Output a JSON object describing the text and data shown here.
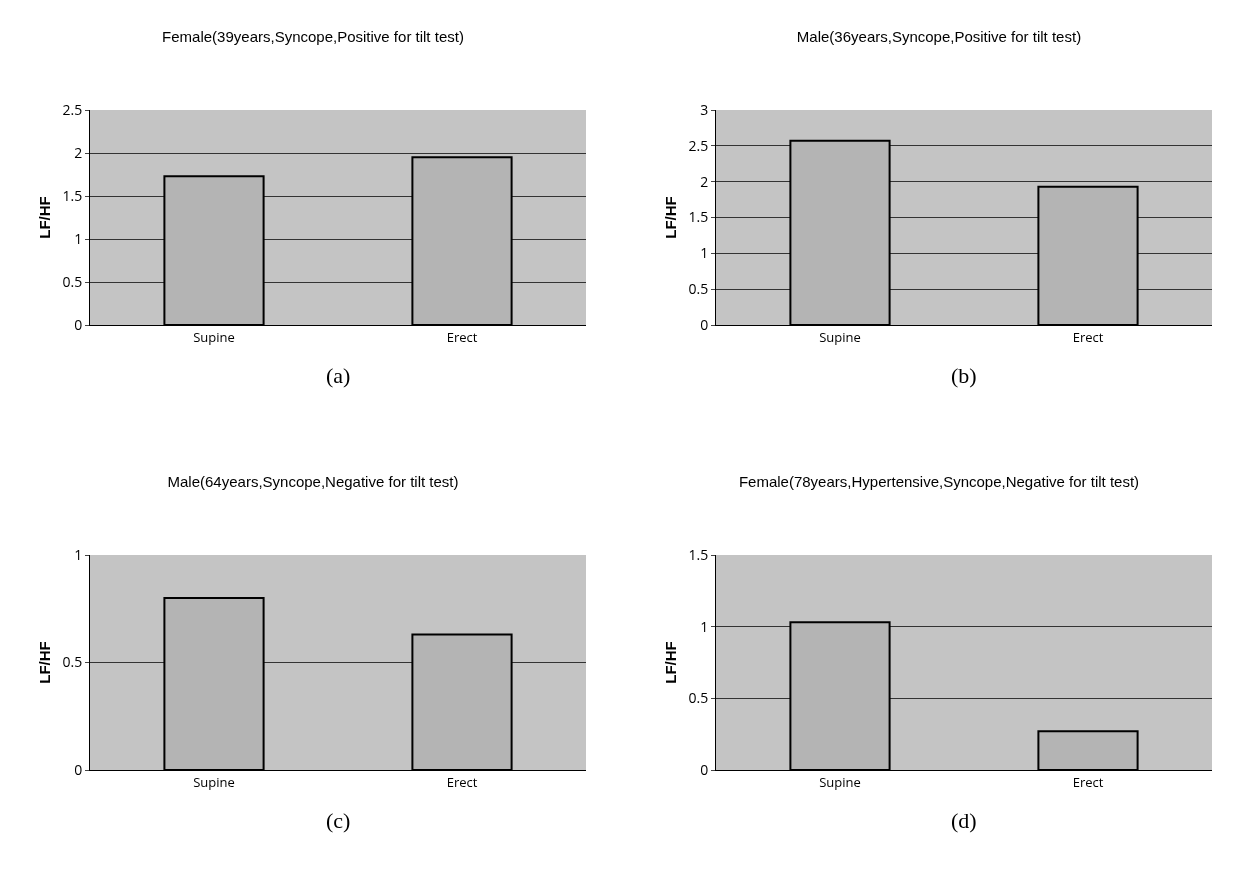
{
  "chart_data": [
    {
      "type": "bar",
      "title": "Female(39years,Syncope,Positive for tilt test)",
      "ylabel": "LF/HF",
      "categories": [
        "Supine",
        "Erect"
      ],
      "values": [
        1.73,
        1.95
      ],
      "color": "#b4b4b4",
      "ylim": [
        0,
        2.5
      ],
      "yticks": [
        0,
        0.5,
        1,
        1.5,
        2,
        2.5
      ],
      "grid": "y",
      "annotations": [
        "(a)"
      ]
    },
    {
      "type": "bar",
      "title": "Male(36years,Syncope,Positive for tilt test)",
      "ylabel": "LF/HF",
      "categories": [
        "Supine",
        "Erect"
      ],
      "values": [
        2.57,
        1.93
      ],
      "color": "#b4b4b4",
      "ylim": [
        0,
        3
      ],
      "yticks": [
        0,
        0.5,
        1,
        1.5,
        2,
        2.5,
        3
      ],
      "grid": "y",
      "annotations": [
        "(b)"
      ]
    },
    {
      "type": "bar",
      "title": "Male(64years,Syncope,Negative for tilt test)",
      "ylabel": "LF/HF",
      "categories": [
        "Supine",
        "Erect"
      ],
      "values": [
        0.8,
        0.63
      ],
      "color": "#b4b4b4",
      "ylim": [
        0,
        1
      ],
      "yticks": [
        0,
        0.5,
        1
      ],
      "grid": "y",
      "annotations": [
        "(c)"
      ]
    },
    {
      "type": "bar",
      "title": "Female(78years,Hypertensive,Syncope,Negative for tilt test)",
      "ylabel": "LF/HF",
      "categories": [
        "Supine",
        "Erect"
      ],
      "values": [
        1.03,
        0.27
      ],
      "color": "#b4b4b4",
      "ylim": [
        0,
        1.5
      ],
      "yticks": [
        0,
        0.5,
        1,
        1.5
      ],
      "grid": "y",
      "annotations": [
        "(d)"
      ]
    }
  ]
}
